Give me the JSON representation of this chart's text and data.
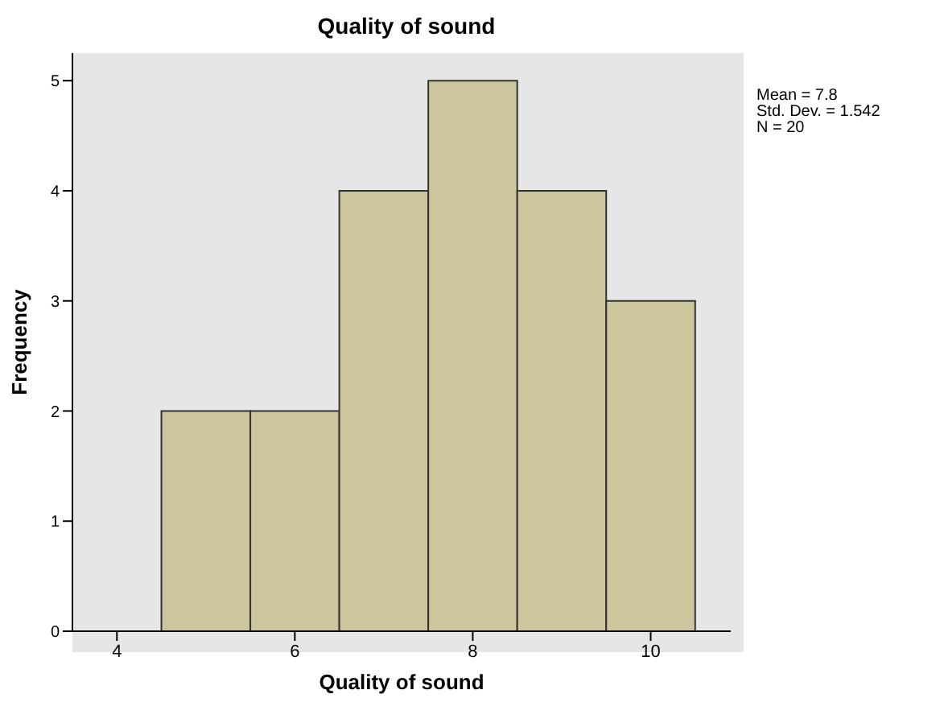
{
  "chart_data": {
    "type": "histogram",
    "title": "Quality of sound",
    "xlabel": "Quality of sound",
    "ylabel": "Frequency",
    "bins": [
      4.5,
      5.5,
      6.5,
      7.5,
      8.5,
      9.5,
      10.5
    ],
    "values": [
      2,
      2,
      4,
      5,
      4,
      3
    ],
    "color": "#cdc59b",
    "xlim": [
      3.5,
      10.9
    ],
    "xticks": [
      4,
      6,
      8,
      10
    ],
    "ylim": [
      0,
      5.25
    ],
    "yticks": [
      0,
      1,
      2,
      3,
      4,
      5
    ],
    "grid": false,
    "annotations": [
      "Mean = 7.8",
      "Std. Dev. = 1.542",
      "N = 20"
    ]
  }
}
